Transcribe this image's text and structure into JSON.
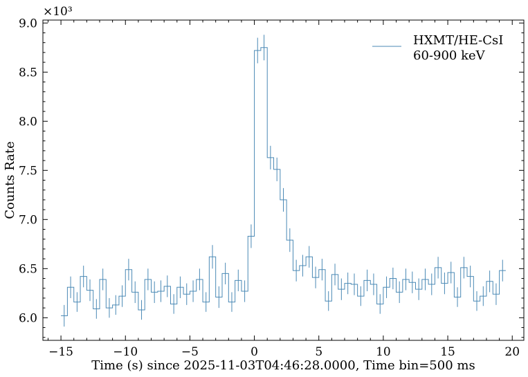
{
  "chart_data": {
    "type": "line",
    "ylabel": "Counts Rate",
    "xlabel": "Time (s) since 2025-11-03T04:46:28.0000, Time bin=500 ms",
    "y_multiplier": "×10³",
    "xlim": [
      -16.4,
      20.9
    ],
    "ylim": [
      5770,
      9030
    ],
    "xticks": [
      -15,
      -10,
      -5,
      0,
      5,
      10,
      15,
      20
    ],
    "xtick_labels": [
      "−15",
      "−10",
      "−5",
      "0",
      "5",
      "10",
      "15",
      "20"
    ],
    "yticks": [
      6000,
      6500,
      7000,
      7500,
      8000,
      8500,
      9000
    ],
    "ytick_labels": [
      "6.0",
      "6.5",
      "7.0",
      "7.5",
      "8.0",
      "8.5",
      "9.0"
    ],
    "legend": {
      "placement": "top-right",
      "label_line1": "HXMT/HE-CsI",
      "label_line2": "60-900 keV"
    },
    "bin_width": 0.5,
    "x_start": -15.0,
    "series": [
      {
        "color": "#4a89b5",
        "values": [
          6020,
          6310,
          6160,
          6420,
          6280,
          6090,
          6390,
          6100,
          6130,
          6220,
          6490,
          6260,
          6080,
          6390,
          6260,
          6270,
          6320,
          6140,
          6310,
          6240,
          6270,
          6390,
          6160,
          6620,
          6210,
          6450,
          6160,
          6380,
          6270,
          6830,
          8720,
          8750,
          7630,
          7510,
          7200,
          6790,
          6480,
          6530,
          6620,
          6410,
          6490,
          6170,
          6440,
          6290,
          6350,
          6340,
          6220,
          6380,
          6340,
          6140,
          6310,
          6400,
          6260,
          6390,
          6360,
          6290,
          6390,
          6340,
          6510,
          6350,
          6460,
          6210,
          6510,
          6420,
          6170,
          6220,
          6370,
          6240,
          6480
        ],
        "errors": [
          110,
          110,
          100,
          110,
          110,
          100,
          110,
          100,
          100,
          110,
          110,
          110,
          100,
          110,
          110,
          110,
          110,
          100,
          110,
          110,
          110,
          110,
          100,
          120,
          110,
          110,
          100,
          110,
          110,
          120,
          130,
          130,
          120,
          120,
          120,
          120,
          110,
          110,
          110,
          110,
          110,
          100,
          110,
          110,
          110,
          110,
          100,
          110,
          110,
          100,
          110,
          110,
          110,
          110,
          110,
          110,
          110,
          110,
          110,
          110,
          110,
          100,
          110,
          110,
          100,
          100,
          110,
          110,
          110
        ]
      }
    ]
  }
}
